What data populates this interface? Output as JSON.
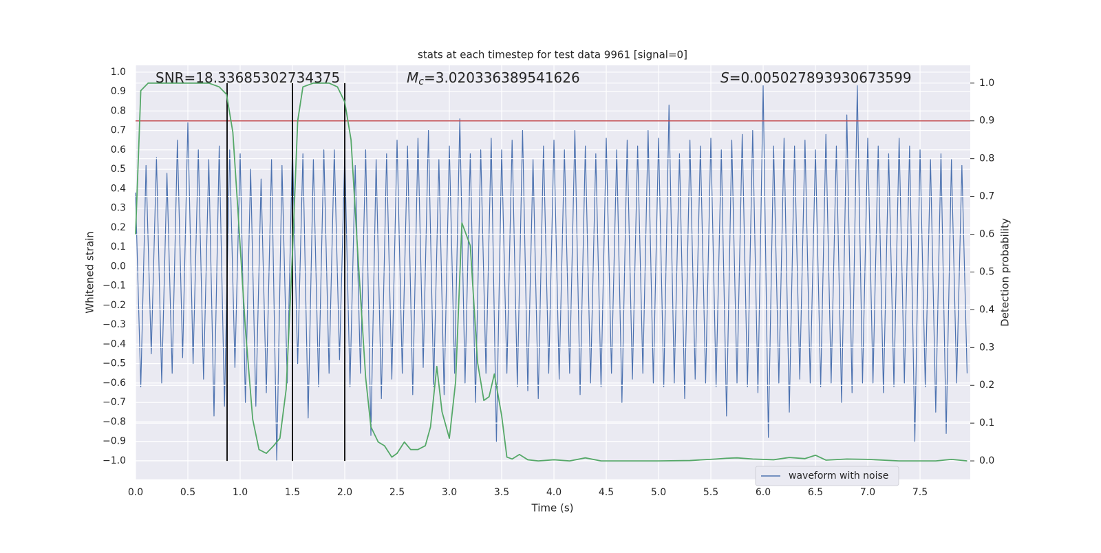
{
  "chart_data": {
    "type": "line",
    "title": "stats at each timestep for test data 9961 [signal=0]",
    "x_label": "Time (s)",
    "y_label": "Whitened strain",
    "y2_label": "Detection probability",
    "annotations": [
      {
        "text": "SNR=18.33685302734375"
      },
      {
        "symbol": "M",
        "subscript": "c",
        "text": "=3.020336389541626"
      },
      {
        "symbol": "S",
        "text": "=0.005027893930673599"
      }
    ],
    "xlim": [
      0,
      7.98
    ],
    "ylim": [
      -1.096,
      1.035
    ],
    "y2lim": [
      -0.049,
      1.047
    ],
    "xticks": [
      {
        "value": 0,
        "label": "0.0"
      },
      0.5,
      {
        "value": 1,
        "label": "1.0"
      },
      1.5,
      {
        "value": 2,
        "label": "2.0"
      },
      2.5,
      {
        "value": 3,
        "label": "3.0"
      },
      3.5,
      {
        "value": 4,
        "label": "4.0"
      },
      4.5,
      {
        "value": 5,
        "label": "5.0"
      },
      5.5,
      {
        "value": 6,
        "label": "6.0"
      },
      6.5,
      {
        "value": 7,
        "label": "7.0"
      },
      7.5
    ],
    "yticks": [
      {
        "value": -1,
        "label": "−1.0"
      },
      {
        "value": -0.9,
        "label": "−0.9"
      },
      {
        "value": -0.8,
        "label": "−0.8"
      },
      {
        "value": -0.7,
        "label": "−0.7"
      },
      {
        "value": -0.6,
        "label": "−0.6"
      },
      {
        "value": -0.5,
        "label": "−0.5"
      },
      {
        "value": -0.4,
        "label": "−0.4"
      },
      {
        "value": -0.3,
        "label": "−0.3"
      },
      {
        "value": -0.2,
        "label": "−0.2"
      },
      {
        "value": -0.1,
        "label": "−0.1"
      },
      {
        "value": 0,
        "label": "0.0"
      },
      0.1,
      0.2,
      0.3,
      0.4,
      0.5,
      0.6,
      0.7,
      0.8,
      0.9,
      {
        "value": 1,
        "label": "1.0"
      }
    ],
    "y2ticks": [
      {
        "value": 0,
        "label": "0.0"
      },
      0.1,
      0.2,
      0.3,
      0.4,
      0.5,
      0.6,
      0.7,
      0.8,
      0.9,
      {
        "value": 1,
        "label": "1.0"
      }
    ],
    "grid": true,
    "legend": "lower right",
    "series": [
      {
        "name": "waveform with noise",
        "color": "#4c72b0",
        "axis": "y",
        "x": [
          0,
          0.05,
          0.1,
          0.15,
          0.2,
          0.25,
          0.3,
          0.35,
          0.4,
          0.45,
          0.5,
          0.55,
          0.6,
          0.65,
          0.7,
          0.75,
          0.8,
          0.85,
          0.9,
          0.95,
          1,
          1.05,
          1.1,
          1.15,
          1.2,
          1.25,
          1.3,
          1.35,
          1.4,
          1.45,
          1.5,
          1.55,
          1.6,
          1.65,
          1.7,
          1.75,
          1.8,
          1.85,
          1.9,
          1.95,
          2,
          2.05,
          2.1,
          2.15,
          2.2,
          2.25,
          2.3,
          2.35,
          2.4,
          2.45,
          2.5,
          2.55,
          2.6,
          2.65,
          2.7,
          2.75,
          2.8,
          2.85,
          2.9,
          2.95,
          3,
          3.05,
          3.1,
          3.15,
          3.2,
          3.25,
          3.3,
          3.35,
          3.4,
          3.45,
          3.5,
          3.55,
          3.6,
          3.65,
          3.7,
          3.75,
          3.8,
          3.85,
          3.9,
          3.95,
          4,
          4.05,
          4.1,
          4.15,
          4.2,
          4.25,
          4.3,
          4.35,
          4.4,
          4.45,
          4.5,
          4.55,
          4.6,
          4.65,
          4.7,
          4.75,
          4.8,
          4.85,
          4.9,
          4.95,
          5,
          5.05,
          5.1,
          5.15,
          5.2,
          5.25,
          5.3,
          5.35,
          5.4,
          5.45,
          5.5,
          5.55,
          5.6,
          5.65,
          5.7,
          5.75,
          5.8,
          5.85,
          5.9,
          5.95,
          6,
          6.05,
          6.1,
          6.15,
          6.2,
          6.25,
          6.3,
          6.35,
          6.4,
          6.45,
          6.5,
          6.55,
          6.6,
          6.65,
          6.7,
          6.75,
          6.8,
          6.85,
          6.9,
          6.95,
          7,
          7.05,
          7.1,
          7.15,
          7.2,
          7.25,
          7.3,
          7.35,
          7.4,
          7.45,
          7.5,
          7.55,
          7.6,
          7.65,
          7.7,
          7.75,
          7.8,
          7.85,
          7.9,
          7.95
        ],
        "values": [
          0.38,
          -0.62,
          0.52,
          -0.45,
          0.56,
          -0.6,
          0.48,
          -0.55,
          0.65,
          -0.47,
          0.74,
          -0.5,
          0.6,
          -0.58,
          0.55,
          -0.77,
          0.62,
          -0.72,
          0.6,
          -0.52,
          0.58,
          -0.7,
          0.5,
          -0.72,
          0.45,
          -0.65,
          0.55,
          -1.0,
          0.52,
          -0.6,
          0.62,
          -0.5,
          0.58,
          -0.78,
          0.55,
          -0.62,
          0.6,
          -0.55,
          0.6,
          -0.48,
          0.58,
          -0.62,
          0.52,
          -0.55,
          0.6,
          -0.87,
          0.55,
          -0.68,
          0.58,
          -0.58,
          0.65,
          -0.55,
          0.62,
          -0.66,
          0.66,
          -0.52,
          0.7,
          -0.62,
          0.55,
          -0.66,
          0.62,
          -0.55,
          0.76,
          -0.6,
          0.58,
          -0.7,
          0.6,
          -0.55,
          0.66,
          -0.9,
          0.6,
          -0.55,
          0.65,
          -0.62,
          0.7,
          -0.64,
          0.55,
          -0.68,
          0.62,
          -0.55,
          0.65,
          -0.58,
          0.6,
          -0.55,
          0.7,
          -0.66,
          0.62,
          -0.6,
          0.58,
          -0.62,
          0.66,
          -0.55,
          0.6,
          -0.7,
          0.65,
          -0.58,
          0.62,
          -0.55,
          0.7,
          -0.6,
          0.66,
          -0.62,
          0.83,
          -0.6,
          0.58,
          -0.68,
          0.65,
          -0.58,
          0.62,
          -0.6,
          0.66,
          -0.62,
          0.6,
          -0.77,
          0.65,
          -0.6,
          0.68,
          -0.62,
          0.7,
          -0.65,
          0.93,
          -0.88,
          0.62,
          -0.6,
          0.66,
          -0.75,
          0.62,
          -0.58,
          0.65,
          -0.6,
          0.6,
          -0.62,
          0.68,
          -0.6,
          0.62,
          -0.7,
          0.78,
          -0.65,
          0.93,
          -0.6,
          0.66,
          -0.6,
          0.62,
          -0.65,
          0.58,
          -0.62,
          0.66,
          -0.6,
          0.62,
          -0.9,
          0.6,
          -0.62,
          0.55,
          -0.75,
          0.58,
          -0.86,
          0.55,
          -0.6,
          0.52,
          -0.55
        ]
      },
      {
        "color": "#55a868",
        "axis": "y2",
        "x": [
          0,
          0.05,
          0.12,
          0.3,
          0.5,
          0.7,
          0.8,
          0.87,
          0.93,
          0.97,
          1.05,
          1.12,
          1.18,
          1.25,
          1.32,
          1.38,
          1.44,
          1.5,
          1.55,
          1.6,
          1.7,
          1.85,
          1.93,
          2,
          2.06,
          2.12,
          2.2,
          2.25,
          2.32,
          2.38,
          2.45,
          2.5,
          2.57,
          2.63,
          2.7,
          2.77,
          2.82,
          2.88,
          2.93,
          3,
          3.06,
          3.12,
          3.2,
          3.27,
          3.33,
          3.38,
          3.43,
          3.5,
          3.55,
          3.6,
          3.67,
          3.75,
          3.85,
          4,
          4.15,
          4.3,
          4.45,
          4.7,
          5,
          5.3,
          5.55,
          5.65,
          5.75,
          5.9,
          6.1,
          6.25,
          6.4,
          6.5,
          6.6,
          6.8,
          7,
          7.3,
          7.65,
          7.8,
          7.95
        ],
        "values": [
          0.6,
          0.98,
          1.0,
          1.0,
          1.0,
          1.0,
          0.99,
          0.97,
          0.87,
          0.7,
          0.35,
          0.11,
          0.03,
          0.02,
          0.04,
          0.06,
          0.19,
          0.55,
          0.9,
          0.99,
          1.0,
          1.0,
          0.99,
          0.95,
          0.85,
          0.57,
          0.22,
          0.09,
          0.05,
          0.04,
          0.01,
          0.02,
          0.05,
          0.03,
          0.03,
          0.04,
          0.09,
          0.25,
          0.13,
          0.06,
          0.21,
          0.63,
          0.57,
          0.26,
          0.16,
          0.17,
          0.23,
          0.12,
          0.01,
          0.005,
          0.017,
          0.003,
          0,
          0.003,
          0,
          0.008,
          0,
          0,
          0,
          0.001,
          0.005,
          0.007,
          0.008,
          0.005,
          0.003,
          0.009,
          0.006,
          0.015,
          0.002,
          0.005,
          0.004,
          0,
          0,
          0.004,
          0
        ]
      }
    ],
    "vlines": {
      "x": [
        0.875,
        1.5,
        2.0
      ],
      "ymin": 0,
      "ymax": 1,
      "axis": "y2",
      "color": "#000000"
    },
    "hline": {
      "value": 0.9,
      "axis": "y2",
      "color": "#c44e52"
    }
  }
}
